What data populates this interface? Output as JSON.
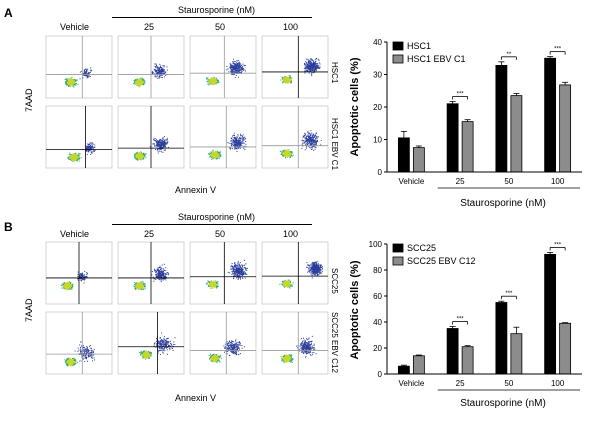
{
  "panel_a": {
    "letter": "A",
    "header": {
      "vehicle": "Vehicle",
      "treatment": "Staurosporine (nM)",
      "doses": [
        "25",
        "50",
        "100"
      ]
    },
    "y_axis_label": "7AAD",
    "x_axis_label": "Annexin V",
    "row_labels": [
      "HSC1",
      "HSC1 EBV C1"
    ]
  },
  "panel_b": {
    "letter": "B",
    "header": {
      "vehicle": "Vehicle",
      "treatment": "Staurosporine (nM)",
      "doses": [
        "25",
        "50",
        "100"
      ]
    },
    "y_axis_label": "7AAD",
    "x_axis_label": "Annexin V",
    "row_labels": [
      "SCC25",
      "SCC25 EBV C12"
    ]
  },
  "colors": {
    "series1": "#000000",
    "series2": "#8c8c8c",
    "density_low": "#2b3d9c",
    "density_mid": "#2aa87a",
    "density_high": "#c8d62a"
  },
  "chart_data": [
    {
      "type": "bar",
      "categories": [
        "Vehicle",
        "25",
        "50",
        "100"
      ],
      "series": [
        {
          "name": "HSC1",
          "values": [
            10.5,
            21,
            32.8,
            35
          ],
          "errors": [
            2,
            0.7,
            1.1,
            0.5
          ]
        },
        {
          "name": "HSC1 EBV C1",
          "values": [
            7.5,
            15.5,
            23.5,
            26.8
          ],
          "errors": [
            0.5,
            0.6,
            0.7,
            0.8
          ]
        }
      ],
      "ylabel": "Apoptotic cells (%)",
      "xlabel": "Staurosporine (nM)",
      "ylim": [
        0,
        40
      ],
      "yticks": [
        "0",
        "10",
        "20",
        "30",
        "40"
      ],
      "significance": [
        "***",
        "**",
        "***"
      ],
      "legend": "top-left"
    },
    {
      "type": "bar",
      "categories": [
        "Vehicle",
        "25",
        "50",
        "100"
      ],
      "series": [
        {
          "name": "SCC25",
          "values": [
            6,
            35,
            55,
            92
          ],
          "errors": [
            0.8,
            1.5,
            1,
            1.5
          ]
        },
        {
          "name": "SCC25 EBV C12",
          "values": [
            14,
            21,
            31,
            39
          ],
          "errors": [
            0.6,
            0.8,
            5,
            0.5
          ]
        }
      ],
      "ylabel": "Apoptotic cells (%)",
      "xlabel": "Staurosporine (nM)",
      "ylim": [
        0,
        100
      ],
      "yticks": [
        "0",
        "20",
        "40",
        "60",
        "80",
        "100"
      ],
      "significance": [
        "***",
        "***",
        "***"
      ],
      "legend": "top-left"
    }
  ]
}
